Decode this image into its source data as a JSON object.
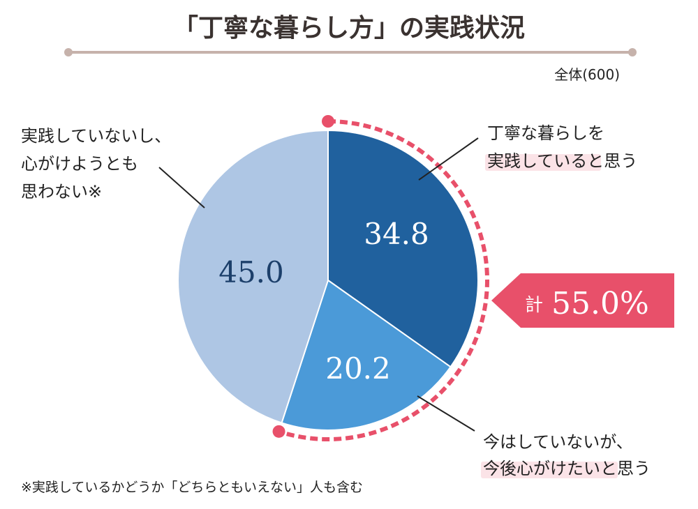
{
  "chart_data": {
    "type": "pie",
    "title": "「丁寧な暮らし方」の実践状況",
    "base_label": "全体(600)",
    "slices": [
      {
        "name": "丁寧な暮らしを実践していると思う",
        "value": 34.8,
        "value_label": "34.8",
        "color": "#20619e"
      },
      {
        "name": "今はしていないが、今後心がけたいと思う",
        "value": 20.2,
        "value_label": "20.2",
        "color": "#4b9ad8"
      },
      {
        "name": "実践していないし、心がけようとも思わない※",
        "value": 45.0,
        "value_label": "45.0",
        "color": "#aec6e4"
      }
    ],
    "callouts": {
      "practicing": {
        "line1": "丁寧な暮らしを",
        "line2_highlight": "実践している",
        "line2_rest": "と思う"
      },
      "future": {
        "line1": "今はしていないが、",
        "line2_highlight": "今後心がけたい",
        "line2_rest": "と思う"
      },
      "not_practicing": {
        "line1": "実践していないし、",
        "line2": "心がけようとも",
        "line3": "思わない※"
      }
    },
    "total_badge": {
      "prefix": "計",
      "value": "55.0%"
    },
    "footnote": "※実践しているかどうか「どちらともいえない」人も含む"
  },
  "colors": {
    "accent": "#e8506a",
    "highlight": "#fbe3e7",
    "title_rule": "#c6b2ab",
    "text": "#222222"
  }
}
